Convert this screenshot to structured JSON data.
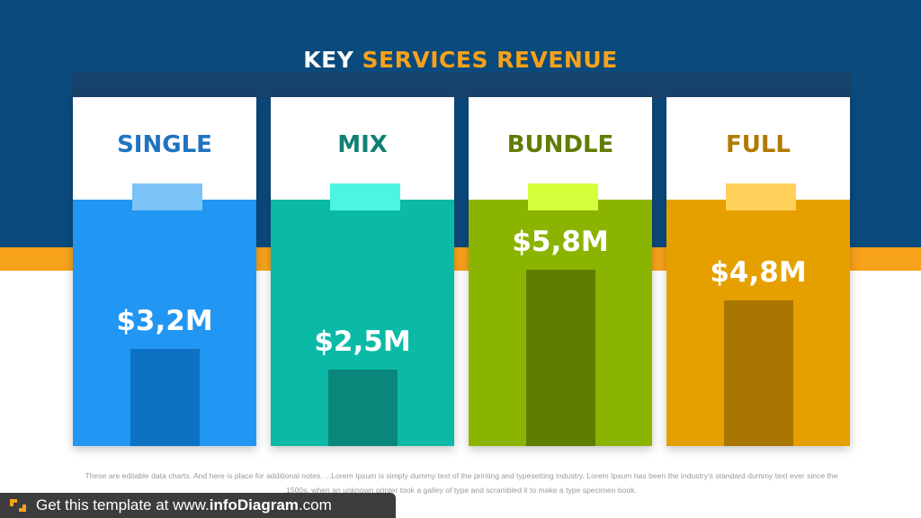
{
  "title": {
    "part1": "KEY",
    "part2": "SERVICES REVENUE"
  },
  "colors": {
    "header_bg": "#0b4a7c",
    "accent_orange": "#f7a21b",
    "single": "#2196f3",
    "mix": "#0bbaa6",
    "bundle": "#8ab400",
    "full": "#e5a000"
  },
  "chart_data": {
    "type": "bar",
    "categories": [
      "SINGLE",
      "MIX",
      "BUNDLE",
      "FULL"
    ],
    "values": [
      3.2,
      2.5,
      5.8,
      4.8
    ],
    "value_labels": [
      "$3,2M",
      "$2,5M",
      "$5,8M",
      "$4,8M"
    ],
    "title": "KEY SERVICES REVENUE",
    "ylim": [
      0,
      8.1
    ]
  },
  "cards": [
    {
      "label": "SINGLE",
      "value_label": "$3,2M",
      "value": 3.2,
      "title_color": "#1f74c0",
      "body_color": "#2196f3",
      "tab_color": "#7cc3f8",
      "bar_color": "#0e72c4"
    },
    {
      "label": "MIX",
      "value_label": "$2,5M",
      "value": 2.5,
      "title_color": "#128074",
      "body_color": "#0bbaa6",
      "tab_color": "#4df5e0",
      "bar_color": "#0a877a"
    },
    {
      "label": "BUNDLE",
      "value_label": "$5,8M",
      "value": 5.8,
      "title_color": "#5f7d05",
      "body_color": "#8ab400",
      "tab_color": "#d4ff3a",
      "bar_color": "#5f7e00"
    },
    {
      "label": "FULL",
      "value_label": "$4,8M",
      "value": 4.8,
      "title_color": "#b07a00",
      "body_color": "#e5a000",
      "tab_color": "#ffd15a",
      "bar_color": "#a87600"
    }
  ],
  "notes": "These are editable data charts. And here is place for additional notes. ...Lorem Ipsum is simply dummy text of the printing and typesetting industry. Lorem Ipsum has been the industry's standard dummy text ever since the 1500s, when an unknown printer took a galley of type and scrambled it to make a type specimen book.",
  "footer": {
    "prefix": "Get this template at www.",
    "brand": "infoDiagram",
    "suffix": ".com"
  }
}
